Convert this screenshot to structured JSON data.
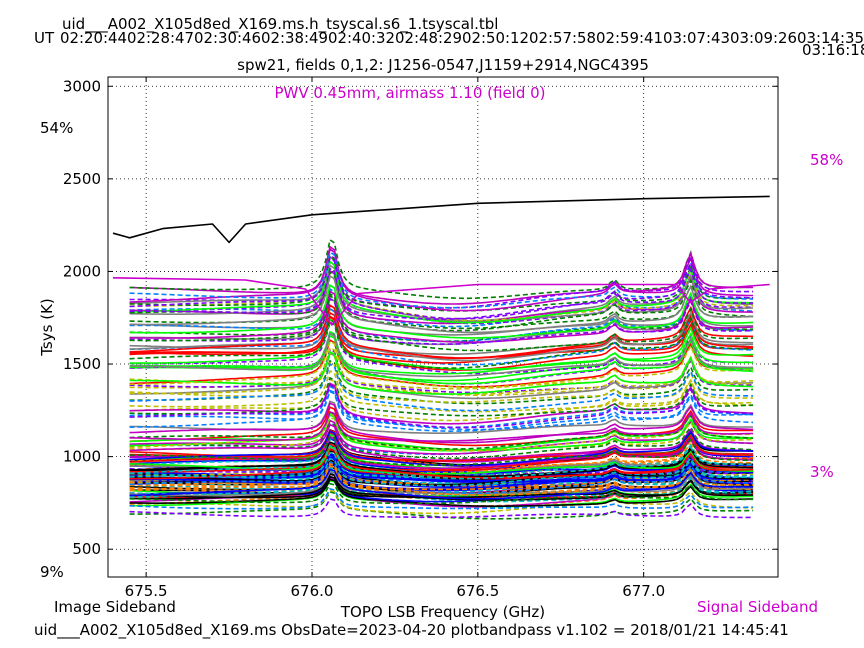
{
  "header": {
    "filename": "uid___A002_X105d8ed_X169.ms.h_tsyscal.s6_1.tsyscal.tbl",
    "ut_prefix": "UT",
    "ut_times": "02:20:4402:28:4702:30:4602:38:4902:40:3202:48:2902:50:1202:57:5802:59:4103:07:4303:09:2603:14:35",
    "ut_time_last": "03:16:18"
  },
  "footer": {
    "left_label": "Image Sideband",
    "right_label": "Signal Sideband",
    "info": "uid___A002_X105d8ed_X169.ms  ObsDate=2023-04-20   plotbandpass v1.102 = 2018/01/21 14:45:41"
  },
  "colors": {
    "axes": "#000000",
    "pwv_text": "#cc00cc",
    "signal_sideband": "#cc00cc",
    "atm_image": "#000000",
    "atm_signal": "#cc00cc",
    "palette": [
      "#0000ff",
      "#008000",
      "#ff0000",
      "#00bfbf",
      "#bf00bf",
      "#bfbf00",
      "#000000",
      "#8000ff",
      "#00ff00",
      "#ff8000",
      "#808080",
      "#0080ff"
    ]
  },
  "chart_data": {
    "type": "line",
    "title": "spw21,  fields 0,1,2: J1256-0547,J1159+2914,NGC4395",
    "annotation": "PWV 0.45mm, airmass 1.10 (field 0)",
    "xlabel": "TOPO LSB Frequency (GHz)",
    "ylabel": "Tsys (K)",
    "xlim": [
      675.385,
      677.405
    ],
    "ylim": [
      350,
      3050
    ],
    "x_ticks": [
      675.5,
      676.0,
      676.5,
      677.0
    ],
    "x_tick_labels": [
      "675.5",
      "676.0",
      "676.5",
      "677.0"
    ],
    "y_ticks": [
      500,
      1000,
      1500,
      2000,
      2500,
      3000
    ],
    "y_tick_labels": [
      "500",
      "1000",
      "1500",
      "2000",
      "2500",
      "3000"
    ],
    "grid": true,
    "grid_style": "dotted",
    "channel_range": [
      675.45,
      677.33
    ],
    "line_features": [
      {
        "center": 676.06,
        "width": 0.02,
        "relative_amplitude": 0.2
      },
      {
        "center": 677.14,
        "width": 0.018,
        "relative_amplitude": 0.14
      },
      {
        "center": 676.91,
        "width": 0.015,
        "relative_amplitude": 0.04
      }
    ],
    "series_summary": {
      "count_estimate": 160,
      "baseline_at_675_45_min": 690,
      "baseline_at_675_45_max": 1920,
      "baseline_at_677_33_min": 700,
      "baseline_at_677_33_max": 2030,
      "peak_max_at_676_06": 2340
    },
    "atm_curves": {
      "image_sideband_transmission": {
        "color": "black",
        "y_axis_labels": {
          "top": "54%",
          "bottom": "9%"
        },
        "points": [
          [
            675.4,
            0.43
          ],
          [
            675.45,
            0.42
          ],
          [
            675.55,
            0.44
          ],
          [
            675.7,
            0.45
          ],
          [
            675.75,
            0.41
          ],
          [
            675.8,
            0.45
          ],
          [
            676.0,
            0.47
          ],
          [
            676.5,
            0.495
          ],
          [
            677.0,
            0.505
          ],
          [
            677.38,
            0.51
          ]
        ]
      },
      "signal_sideband_transmission": {
        "color": "magenta",
        "y_axis_labels": {
          "top": "58%",
          "bottom": "3%"
        },
        "points": [
          [
            675.4,
            0.515
          ],
          [
            675.8,
            0.51
          ],
          [
            675.98,
            0.49
          ],
          [
            676.06,
            0.41
          ],
          [
            676.14,
            0.48
          ],
          [
            676.5,
            0.5
          ],
          [
            677.1,
            0.5
          ],
          [
            677.14,
            0.46
          ],
          [
            677.2,
            0.49
          ],
          [
            677.38,
            0.5
          ]
        ]
      }
    }
  }
}
